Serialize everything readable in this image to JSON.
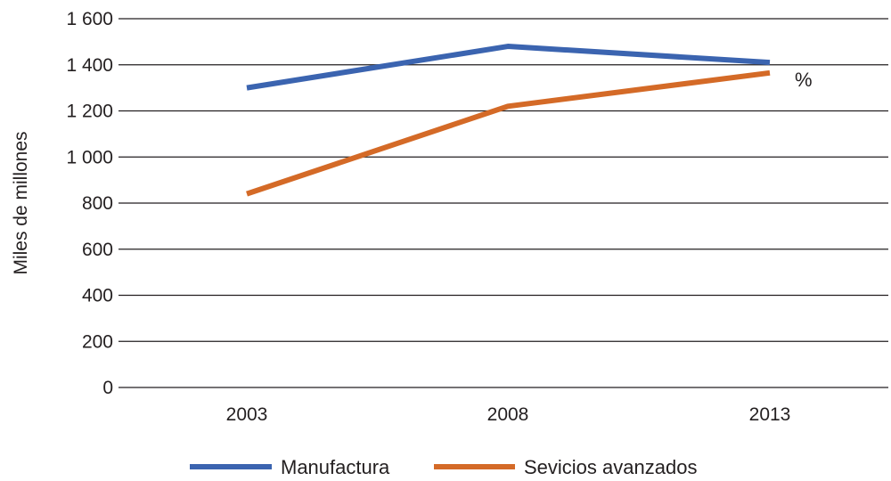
{
  "chart_data": {
    "type": "line",
    "title": "",
    "xlabel": "",
    "ylabel": "Miles de millones",
    "categories": [
      "2003",
      "2008",
      "2013"
    ],
    "ylim": [
      0,
      1600
    ],
    "yticks": [
      0,
      200,
      400,
      600,
      800,
      1000,
      1200,
      1400,
      1600
    ],
    "ytick_labels": [
      "0",
      "200",
      "400",
      "600",
      "800",
      "1 000",
      "1 200",
      "1 400",
      "1 600"
    ],
    "grid": true,
    "legend_position": "bottom",
    "series": [
      {
        "name": "Manufactura",
        "values": [
          1300,
          1480,
          1410
        ],
        "color": "#3b64b0"
      },
      {
        "name": "Sevicios avanzados",
        "values": [
          840,
          1220,
          1365
        ],
        "color": "#d46a27"
      }
    ],
    "annotations": [
      "%"
    ]
  }
}
